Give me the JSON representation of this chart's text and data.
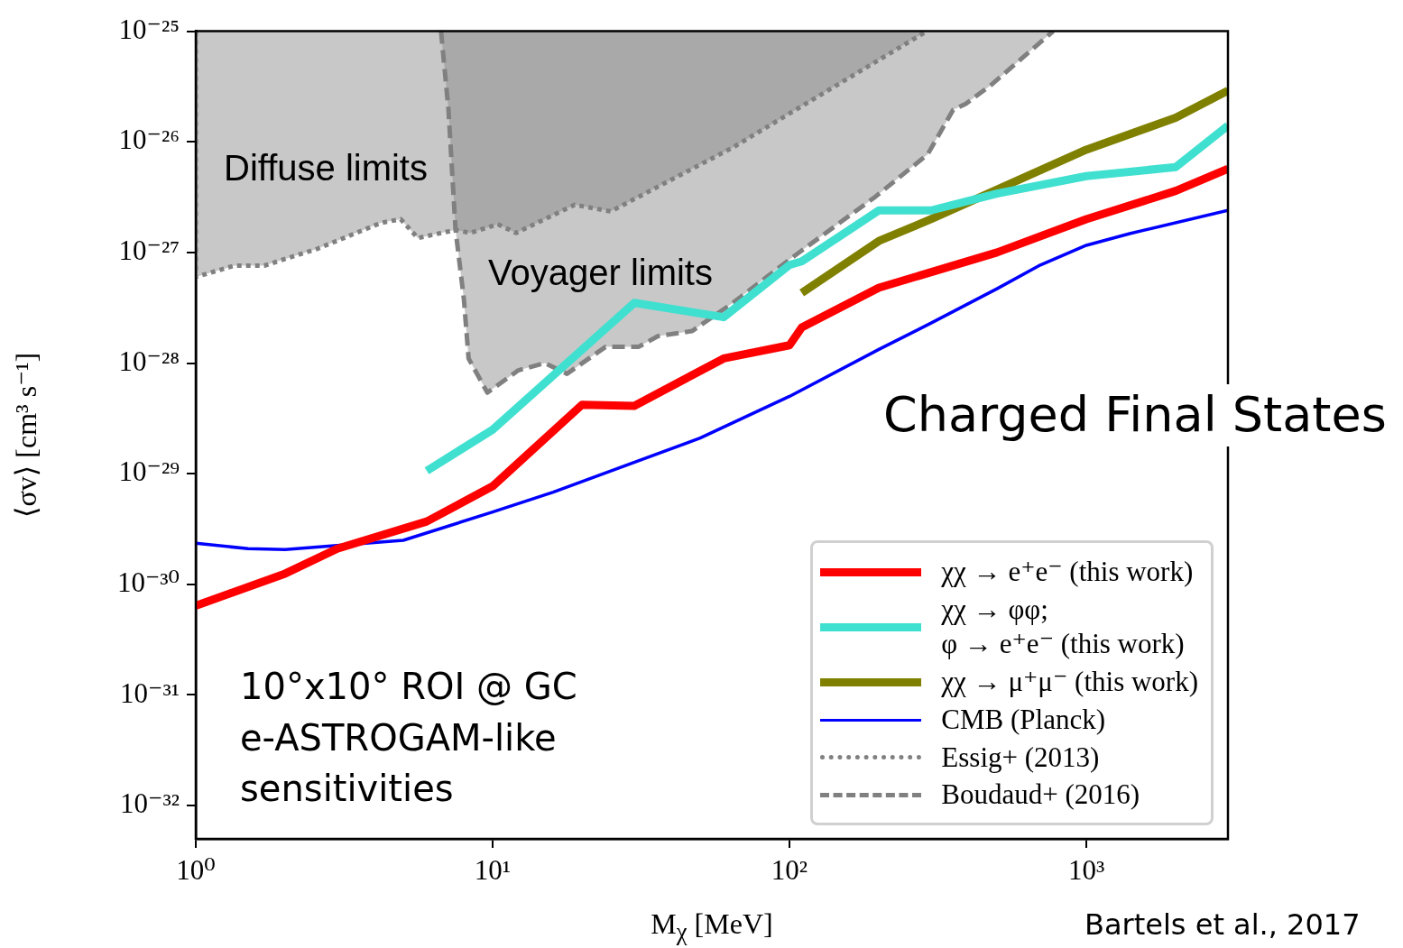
{
  "chart_data": {
    "type": "line",
    "xlabel": "M$_{χ}$ [MeV]",
    "ylabel": "⟨σv⟩ [cm³ s⁻¹]",
    "log": "xy",
    "legend": "bottom right",
    "xlim": [
      1,
      3000
    ],
    "ylim": [
      5e-33,
      1e-25
    ],
    "xticks": [
      {
        "value": 1,
        "label": "10⁰"
      },
      {
        "value": 10,
        "label": "10¹"
      },
      {
        "value": 100,
        "label": "10²"
      },
      {
        "value": 1000,
        "label": "10³"
      }
    ],
    "yticks": [
      {
        "value": 1e-32,
        "label": "10⁻³²"
      },
      {
        "value": 1e-31,
        "label": "10⁻³¹"
      },
      {
        "value": 1e-30,
        "label": "10⁻³⁰"
      },
      {
        "value": 1e-29,
        "label": "10⁻²⁹"
      },
      {
        "value": 1e-28,
        "label": "10⁻²⁸"
      },
      {
        "value": 1e-27,
        "label": "10⁻²⁷"
      },
      {
        "value": 1e-26,
        "label": "10⁻²⁶"
      },
      {
        "value": 1e-25,
        "label": "10⁻²⁵"
      }
    ],
    "series": [
      {
        "name": "χχ → e⁺e⁻ (this work)",
        "color": "#ff0000",
        "type": "line",
        "x": [
          1,
          2,
          3,
          6,
          10,
          20,
          30,
          60,
          100,
          110,
          200,
          500,
          1000,
          2000,
          3000
        ],
        "values": [
          6.4e-31,
          1.25e-30,
          2.1e-30,
          3.7e-30,
          7.7e-30,
          4.2e-29,
          4.1e-29,
          1.1e-28,
          1.45e-28,
          2.1e-28,
          4.8e-28,
          1e-27,
          2e-27,
          3.6e-27,
          5.7e-27
        ]
      },
      {
        "name": "χχ → φφ;\nφ → e⁺e⁻ (this work)",
        "color": "#40e0d0",
        "type": "line",
        "x": [
          6,
          10,
          30,
          60,
          100,
          110,
          200,
          300,
          500,
          1000,
          2000,
          3000
        ],
        "values": [
          1.06e-29,
          2.5e-29,
          3.5e-28,
          2.6e-28,
          7.7e-28,
          8.3e-28,
          2.4e-27,
          2.4e-27,
          3.4e-27,
          4.9e-27,
          5.9e-27,
          1.4e-26
        ]
      },
      {
        "name": "χχ → μ⁺μ⁻ (this work)",
        "color": "#808000",
        "type": "line",
        "x": [
          110,
          200,
          300,
          1000,
          2000,
          3000
        ],
        "values": [
          4.3e-28,
          1.27e-27,
          2e-27,
          8.5e-27,
          1.65e-26,
          2.9e-26
        ]
      },
      {
        "name": "CMB (Planck)",
        "color": "#0000ff",
        "type": "line",
        "x": [
          1,
          1.5,
          2,
          5,
          10,
          16,
          50,
          100,
          200,
          300,
          500,
          700,
          1000,
          1400,
          3000
        ],
        "values": [
          2.35e-30,
          2.1e-30,
          2.06e-30,
          2.5e-30,
          4.5e-30,
          6.8e-30,
          2.1e-29,
          5e-29,
          1.33e-28,
          2.3e-28,
          4.7e-28,
          7.7e-28,
          1.16e-27,
          1.48e-27,
          2.4e-27
        ]
      },
      {
        "name": "Essig+ (2013)",
        "color": "#808080",
        "type": "area",
        "line_style": "dotted",
        "x": [
          1,
          1,
          1.35,
          1.7,
          2.57,
          4.2,
          4.9,
          5.6,
          7.5,
          8.4,
          10.4,
          12,
          18.9,
          25,
          64.5,
          290
        ],
        "values": [
          1e-25,
          6e-28,
          7.6e-28,
          7.6e-28,
          1.08e-27,
          1.85e-27,
          2e-27,
          1.35e-27,
          1.6e-27,
          1.5e-27,
          1.8e-27,
          1.5e-27,
          2.7e-27,
          2.35e-27,
          8.9e-27,
          1e-25
        ]
      },
      {
        "name": "Boudaud+ (2016)",
        "color": "#808080",
        "type": "area",
        "line_style": "dashed",
        "x": [
          6.7,
          7.1,
          7.5,
          8,
          8.3,
          9.6,
          12.2,
          15,
          17.8,
          24,
          31,
          36,
          47,
          64.5,
          105,
          195,
          292,
          356,
          392,
          480,
          773
        ],
        "values": [
          1e-25,
          1.95e-26,
          1.6e-27,
          3.8e-28,
          1.1e-28,
          5.4e-29,
          8.6e-29,
          1e-28,
          8e-29,
          1.4e-28,
          1.4e-28,
          1.75e-28,
          1.95e-28,
          3.5e-28,
          9.5e-28,
          3.2e-27,
          7.7e-27,
          1.95e-26,
          2.2e-26,
          3.3e-26,
          1e-25
        ]
      }
    ],
    "annotations": [
      "Diffuse limits",
      "Voyager limits",
      "Charged Final States",
      "10°x10° ROI @ GC",
      "e-ASTROGAM-like",
      "sensitivities",
      "Bartels et al., 2017"
    ]
  }
}
